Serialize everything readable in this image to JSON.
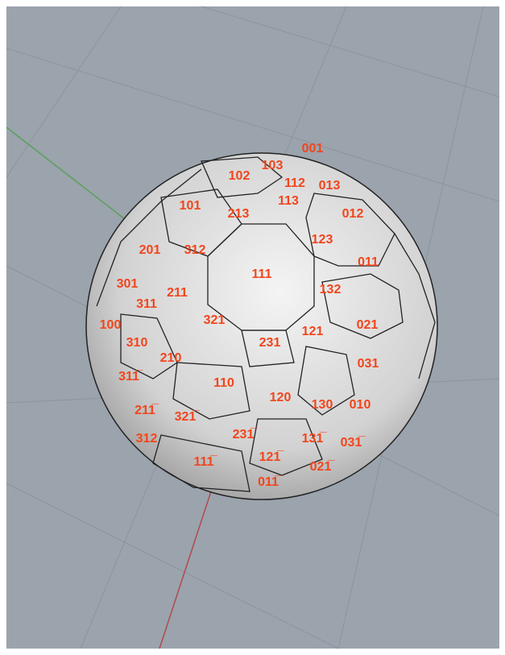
{
  "labels": [
    "001",
    "103",
    "102",
    "112",
    "013",
    "113",
    "101",
    "213",
    "012",
    "123",
    "201",
    "312",
    "011",
    "111",
    "301",
    "211",
    "132",
    "311",
    "321",
    "100",
    "021",
    "231",
    "121",
    "310",
    "210",
    "031",
    "311̅",
    "110",
    "120",
    "130",
    "010",
    "211̅",
    "321̅",
    "231̅",
    "131̅",
    "031̅",
    "312",
    "111̅",
    "121̅",
    "021̅",
    "011̅"
  ]
}
